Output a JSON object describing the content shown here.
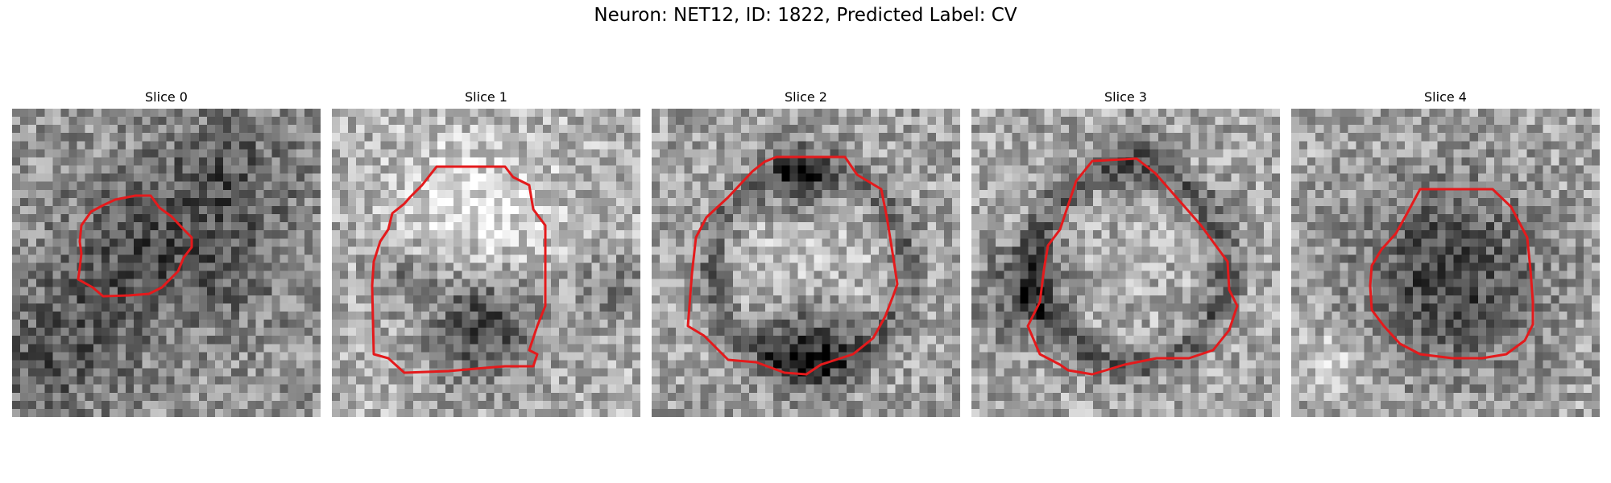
{
  "figure": {
    "title": "Neuron: NET12, ID: 1822, Predicted Label: CV",
    "contour_color": "#e41a1c",
    "colormap": "gray"
  },
  "panels": [
    {
      "title": "Slice 0",
      "content": "grayscale micrograph patch, small darker circular region outlined in red"
    },
    {
      "title": "Slice 1",
      "content": "grayscale micrograph patch, bright circular region outlined in red with dark band at bottom"
    },
    {
      "title": "Slice 2",
      "content": "grayscale micrograph patch, circular region with dark rim outlined in red"
    },
    {
      "title": "Slice 3",
      "content": "grayscale micrograph patch, circular region with dark rim outlined in red"
    },
    {
      "title": "Slice 4",
      "content": "grayscale micrograph patch, dark circular region outlined in red"
    }
  ]
}
